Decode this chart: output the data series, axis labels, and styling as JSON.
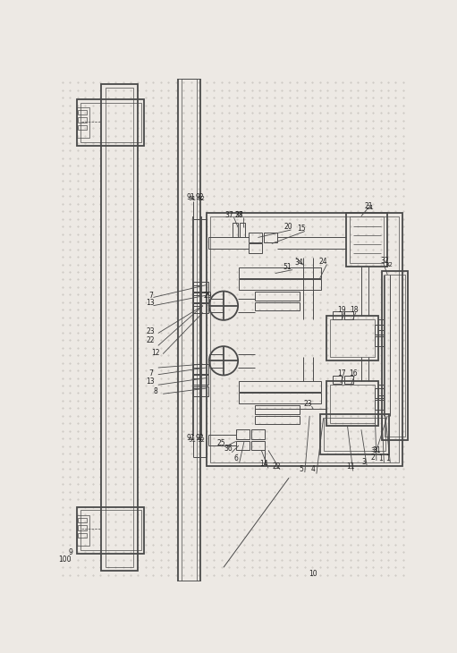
{
  "bg_color": "#ede9e4",
  "line_color": "#4a4a4a",
  "lw": 0.7,
  "lw2": 1.3,
  "lw3": 0.5
}
